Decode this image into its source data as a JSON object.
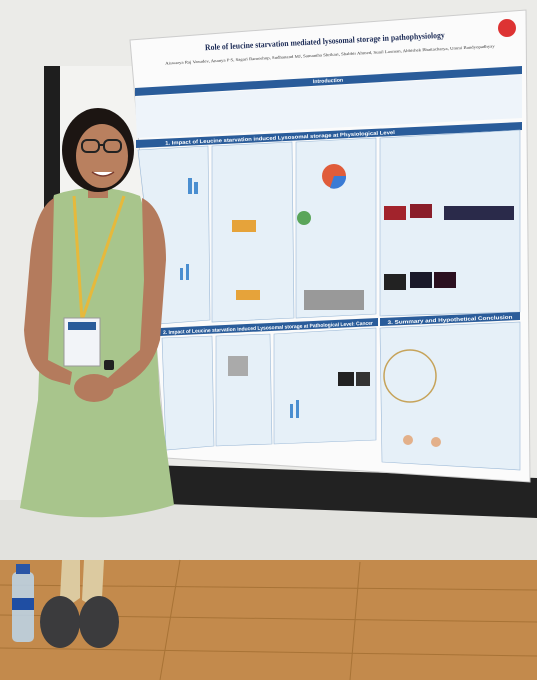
{
  "poster": {
    "title": "Role of leucine starvation mediated lysosomal storage in pathophysiology",
    "authors": "Aiswarya Raj Vasudev, Ananya P S, Sagari Ramoshop, Sudhanand MJ, Samantha Shrikari, Shabbir Ahmed, Sunil Laxman, Abhishek Bhattacharya, Ummi Bandyopadhyay",
    "sections": [
      "Introduction",
      "1. Impact of Leucine starvation induced Lysosomal storage at Physiological Level",
      "2. Impact of Leucine starvation induced Lysosomal storage at Pathological Level: Cancer",
      "3. Summary and Hypothetical Conclusion"
    ]
  }
}
